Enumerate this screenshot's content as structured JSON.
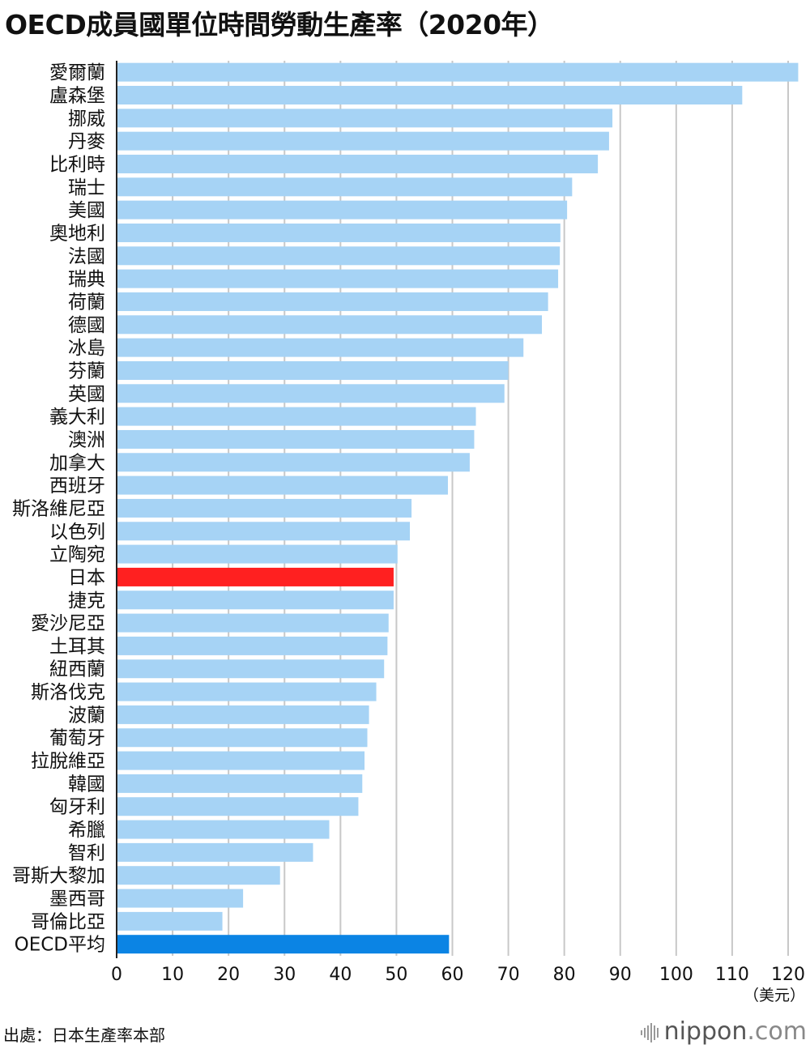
{
  "title": "OECD成員國單位時間勞動生產率（2020年）",
  "source": "出處：日本生產率本部",
  "logo": {
    "name": "nippon",
    "suffix": ".com"
  },
  "colors": {
    "bar": "#a6d3f5",
    "highlight": "#ff2020",
    "average": "#0b84e4",
    "grid": "#c8c8c8",
    "axis": "#222222"
  },
  "chart_data": {
    "type": "bar",
    "orientation": "horizontal",
    "title": "OECD成員國單位時間勞動生產率（2020年）",
    "unit": "（美元）",
    "xlim": [
      0,
      120
    ],
    "ticks": [
      0,
      10,
      20,
      30,
      40,
      50,
      60,
      70,
      80,
      90,
      100,
      110,
      120
    ],
    "grid": true,
    "categories": [
      "愛爾蘭",
      "盧森堡",
      "挪威",
      "丹麥",
      "比利時",
      "瑞士",
      "美國",
      "奧地利",
      "法國",
      "瑞典",
      "荷蘭",
      "德國",
      "冰島",
      "芬蘭",
      "英國",
      "義大利",
      "澳洲",
      "加拿大",
      "西班牙",
      "斯洛維尼亞",
      "以色列",
      "立陶宛",
      "日本",
      "捷克",
      "愛沙尼亞",
      "土耳其",
      "紐西蘭",
      "斯洛伐克",
      "波蘭",
      "葡萄牙",
      "拉脫維亞",
      "韓國",
      "匈牙利",
      "希臘",
      "智利",
      "哥斯大黎加",
      "墨西哥",
      "哥倫比亞",
      "OECD平均"
    ],
    "values": [
      121.8,
      111.8,
      88.6,
      88.0,
      86.0,
      81.4,
      80.5,
      79.3,
      79.2,
      78.9,
      77.1,
      76.0,
      72.7,
      70.0,
      69.3,
      64.2,
      63.9,
      63.1,
      59.2,
      52.7,
      52.4,
      50.2,
      49.5,
      49.5,
      48.6,
      48.4,
      47.8,
      46.4,
      45.1,
      44.8,
      44.3,
      43.9,
      43.2,
      38.0,
      35.1,
      29.2,
      22.6,
      18.9,
      59.4
    ],
    "highlight": [
      "日本"
    ],
    "average": [
      "OECD平均"
    ]
  }
}
